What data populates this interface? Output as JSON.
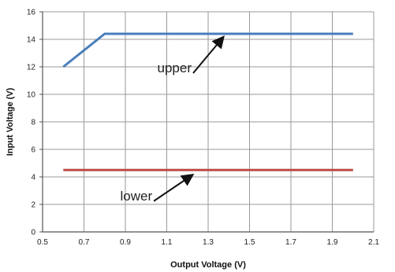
{
  "chart_data": {
    "type": "line",
    "title": "",
    "xlabel": "Output Voltage (V)",
    "ylabel": "Input Voltage (V)",
    "xlim": [
      0.5,
      2.1
    ],
    "ylim": [
      0,
      16
    ],
    "x_ticks": [
      "0.5",
      "0.7",
      "0.9",
      "1.1",
      "1.3",
      "1.5",
      "1.7",
      "1.9",
      "2.1"
    ],
    "y_ticks": [
      "0",
      "2",
      "4",
      "6",
      "8",
      "10",
      "12",
      "14",
      "16"
    ],
    "grid": true,
    "series": [
      {
        "name": "upper",
        "color": "#4a7ebb",
        "points": [
          [
            0.6,
            12.0
          ],
          [
            0.8,
            14.4
          ],
          [
            2.0,
            14.4
          ]
        ]
      },
      {
        "name": "lower",
        "color": "#be4b48",
        "points": [
          [
            0.6,
            4.5
          ],
          [
            2.0,
            4.5
          ]
        ]
      }
    ],
    "annotations": [
      {
        "text": "upper",
        "x": 1.22,
        "y": 11.6,
        "arrow_to": [
          1.37,
          14.1
        ]
      },
      {
        "text": "lower",
        "x": 1.03,
        "y": 2.3,
        "arrow_to": [
          1.22,
          4.1
        ]
      }
    ]
  }
}
